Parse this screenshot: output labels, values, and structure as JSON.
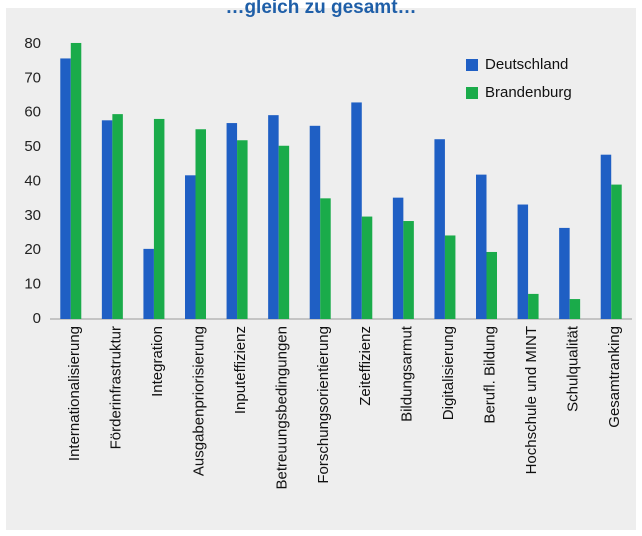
{
  "chart_data": {
    "type": "bar",
    "title": "…gleich zu gesamt…",
    "xlabel": "",
    "ylabel": "",
    "ylim": [
      0,
      85
    ],
    "yticks": [
      0,
      10,
      20,
      30,
      40,
      50,
      60,
      70,
      80
    ],
    "grid": false,
    "legend_position": "top-right",
    "categories": [
      "Internationalisierung",
      "Förderinfrastruktur",
      "Integration",
      "Ausgabenpriorisierung",
      "Inputeffizienz",
      "Betreuungsbedingungen",
      "Forschungsorientierung",
      "Zeiteffizienz",
      "Bildungsarmut",
      "Digitalisierung",
      "Berufl. Bildung",
      "Hochschule und MINT",
      "Schulqualität",
      "Gesamtranking"
    ],
    "series": [
      {
        "name": "Deutschland",
        "color": "#1f5fc4",
        "values": [
          75.8,
          57.8,
          20.4,
          41.8,
          57.0,
          59.3,
          56.2,
          63.0,
          35.3,
          52.3,
          42.0,
          33.3,
          26.5,
          47.8
        ]
      },
      {
        "name": "Brandenburg",
        "color": "#1aab4a",
        "values": [
          80.3,
          59.6,
          58.2,
          55.2,
          52.0,
          50.4,
          35.1,
          29.8,
          28.5,
          24.3,
          19.5,
          7.3,
          5.8,
          39.1
        ]
      }
    ]
  }
}
